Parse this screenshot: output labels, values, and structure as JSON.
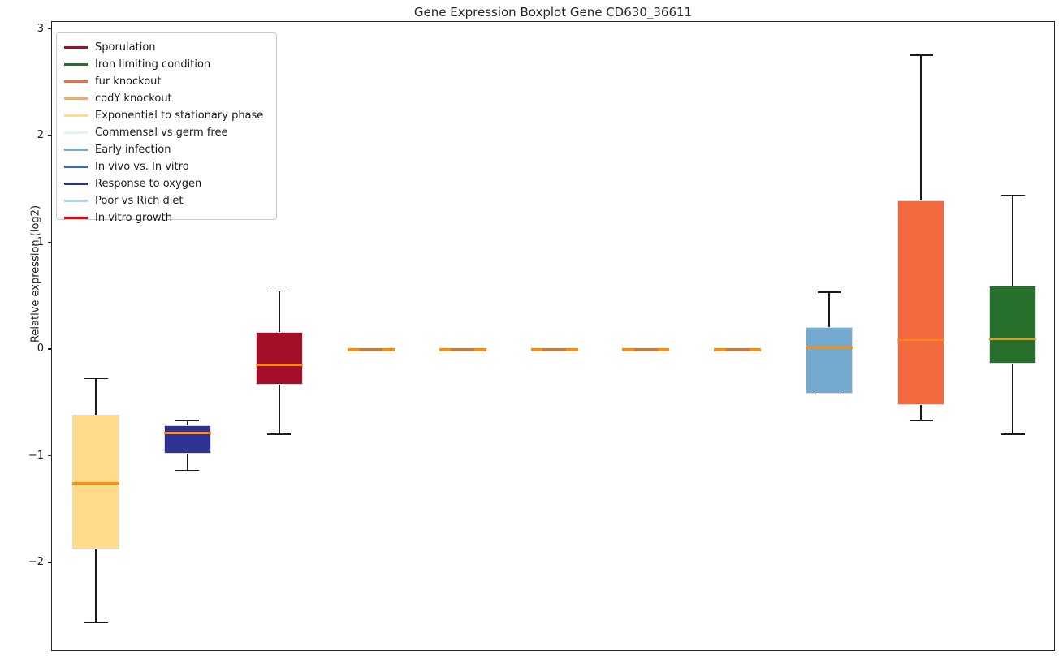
{
  "chart_data": {
    "type": "boxplot",
    "title": "Gene Expression Boxplot Gene CD630_36611",
    "ylabel": "Relative expression (log2)",
    "xlabel": "",
    "ylim": [
      -2.83,
      3.07
    ],
    "yticks": [
      3,
      2,
      1,
      0,
      -1,
      -2
    ],
    "grid": false,
    "legend_position": "upper left",
    "median_color": "#FF8C0A",
    "whisker_color": "#1a1a1a",
    "flat_center_color": "#C8793C",
    "legend": [
      {
        "label": "Sporulation",
        "color": "#A40E28"
      },
      {
        "label": "Iron limiting condition",
        "color": "#26702C"
      },
      {
        "label": "fur knockout",
        "color": "#F46A3F"
      },
      {
        "label": "codY knockout",
        "color": "#FBA859"
      },
      {
        "label": "Exponential to stationary phase",
        "color": "#FFDB8A"
      },
      {
        "label": "Commensal vs germ free",
        "color": "#E2F1F8"
      },
      {
        "label": "Early infection",
        "color": "#74A9D0"
      },
      {
        "label": "In vivo vs. In vitro",
        "color": "#3D69B1"
      },
      {
        "label": "Response to oxygen",
        "color": "#2F3293"
      },
      {
        "label": "Poor vs Rich diet",
        "color": "#AFD6E9"
      },
      {
        "label": "In vitro growth",
        "color": "#E8000D"
      }
    ],
    "boxes": [
      {
        "condition": "Exponential to stationary phase",
        "color": "#FFDB8A",
        "whisker_low": -2.56,
        "q1": -1.87,
        "median": -1.25,
        "q3": -0.61,
        "whisker_high": -0.27
      },
      {
        "condition": "Response to oxygen",
        "color": "#2F3293",
        "whisker_low": -1.13,
        "q1": -0.97,
        "median": -0.78,
        "q3": -0.71,
        "whisker_high": -0.66
      },
      {
        "condition": "Sporulation",
        "color": "#A40E28",
        "whisker_low": -0.79,
        "q1": -0.33,
        "median": -0.14,
        "q3": 0.17,
        "whisker_high": 0.55
      },
      {
        "condition": "codY knockout",
        "color": "#FBA859",
        "whisker_low": -0.02,
        "q1": -0.01,
        "median": 0.0,
        "q3": 0.01,
        "whisker_high": 0.02
      },
      {
        "condition": "In vitro growth",
        "color": "#E8000D",
        "whisker_low": -0.02,
        "q1": -0.01,
        "median": 0.0,
        "q3": 0.01,
        "whisker_high": 0.02
      },
      {
        "condition": "Commensal vs germ free",
        "color": "#E2F1F8",
        "whisker_low": -0.02,
        "q1": -0.01,
        "median": 0.0,
        "q3": 0.01,
        "whisker_high": 0.02
      },
      {
        "condition": "Poor vs Rich diet",
        "color": "#AFD6E9",
        "whisker_low": -0.02,
        "q1": -0.01,
        "median": 0.0,
        "q3": 0.01,
        "whisker_high": 0.02
      },
      {
        "condition": "In vivo vs. In vitro",
        "color": "#3D69B1",
        "whisker_low": -0.02,
        "q1": -0.01,
        "median": 0.0,
        "q3": 0.01,
        "whisker_high": 0.02
      },
      {
        "condition": "Early infection",
        "color": "#74A9D0",
        "whisker_low": -0.41,
        "q1": -0.41,
        "median": 0.02,
        "q3": 0.21,
        "whisker_high": 0.54
      },
      {
        "condition": "fur knockout",
        "color": "#F46A3F",
        "whisker_low": -0.66,
        "q1": -0.52,
        "median": 0.09,
        "q3": 1.4,
        "whisker_high": 2.76
      },
      {
        "condition": "Iron limiting condition",
        "color": "#26702C",
        "whisker_low": -0.79,
        "q1": -0.13,
        "median": 0.1,
        "q3": 0.6,
        "whisker_high": 1.45
      }
    ]
  }
}
